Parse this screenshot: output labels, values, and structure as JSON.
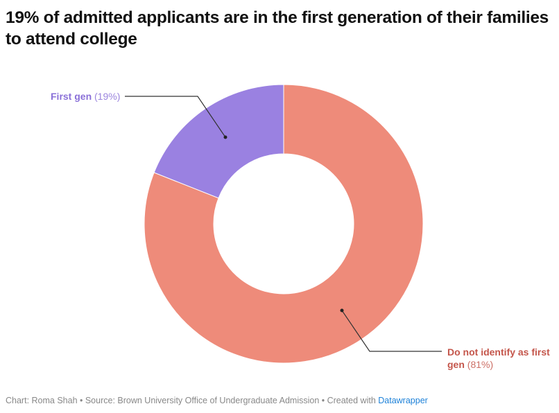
{
  "chart_data": {
    "type": "pie",
    "donut": true,
    "title": "19% of admitted applicants are in the first generation of their families to attend college",
    "slices": [
      {
        "label": "Do not identify as first gen",
        "value": 81,
        "value_label": "(81%)",
        "color": "#ee8b7a",
        "label_color": "#c4564b"
      },
      {
        "label": "First gen",
        "value": 19,
        "value_label": "(19%)",
        "color": "#9a81e1",
        "label_color": "#8a70d8"
      }
    ]
  },
  "footer": {
    "text": "Chart: Roma Shah • Source: Brown University Office of Undergraduate Admission • Created with ",
    "link": "Datawrapper"
  }
}
